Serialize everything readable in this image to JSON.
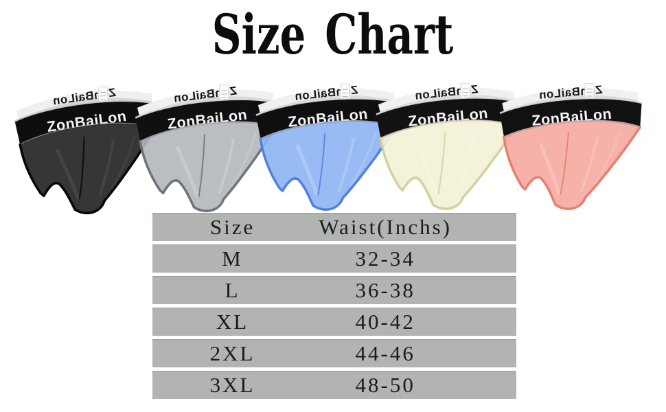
{
  "title": "Size Chart",
  "brand": "ZonBaiLon",
  "products": [
    {
      "name": "Black",
      "body": "#2b2b2b",
      "body_opacity": 0.95,
      "trim": "#070707",
      "band": "#0e0e0e",
      "band_text": "#f5f5f5",
      "back_band": "#d6d6d6",
      "back_band_text": "#161616",
      "piping": "#cfcfcf",
      "sheen": "#7d7d7d"
    },
    {
      "name": "Gray",
      "body": "#b4b8bd",
      "body_opacity": 0.92,
      "trim": "#6e747c",
      "band": "#101010",
      "band_text": "#f5f5f5",
      "back_band": "#d9d9d9",
      "back_band_text": "#161616",
      "piping": "#d9d9d9",
      "sheen": "#ffffff"
    },
    {
      "name": "Blue",
      "body": "#8eb4f2",
      "body_opacity": 0.9,
      "trim": "#4f82e0",
      "band": "#0f0f0f",
      "band_text": "#f5f5f5",
      "back_band": "#dcdcdc",
      "back_band_text": "#161616",
      "piping": "#d9d9d9",
      "sheen": "#ffffff"
    },
    {
      "name": "Beige",
      "body": "#f3f1d6",
      "body_opacity": 0.93,
      "trim": "#d6d09c",
      "band": "#121212",
      "band_text": "#f5f5f5",
      "back_band": "#dedede",
      "back_band_text": "#161616",
      "piping": "#d9d9d9",
      "sheen": "#ffffff"
    },
    {
      "name": "Pink",
      "body": "#f5a89f",
      "body_opacity": 0.9,
      "trim": "#e87f73",
      "band": "#111111",
      "band_text": "#f5f5f5",
      "back_band": "#dedede",
      "back_band_text": "#161616",
      "piping": "#d9d9d9",
      "sheen": "#ffffff"
    }
  ],
  "table": {
    "headers": [
      "Size",
      "Waist(Inchs)"
    ],
    "rows": [
      [
        "M",
        "32-34"
      ],
      [
        "L",
        "36-38"
      ],
      [
        "XL",
        "40-42"
      ],
      [
        "2XL",
        "44-46"
      ],
      [
        "3XL",
        "48-50"
      ]
    ],
    "row_color": "#b1b4b1"
  }
}
